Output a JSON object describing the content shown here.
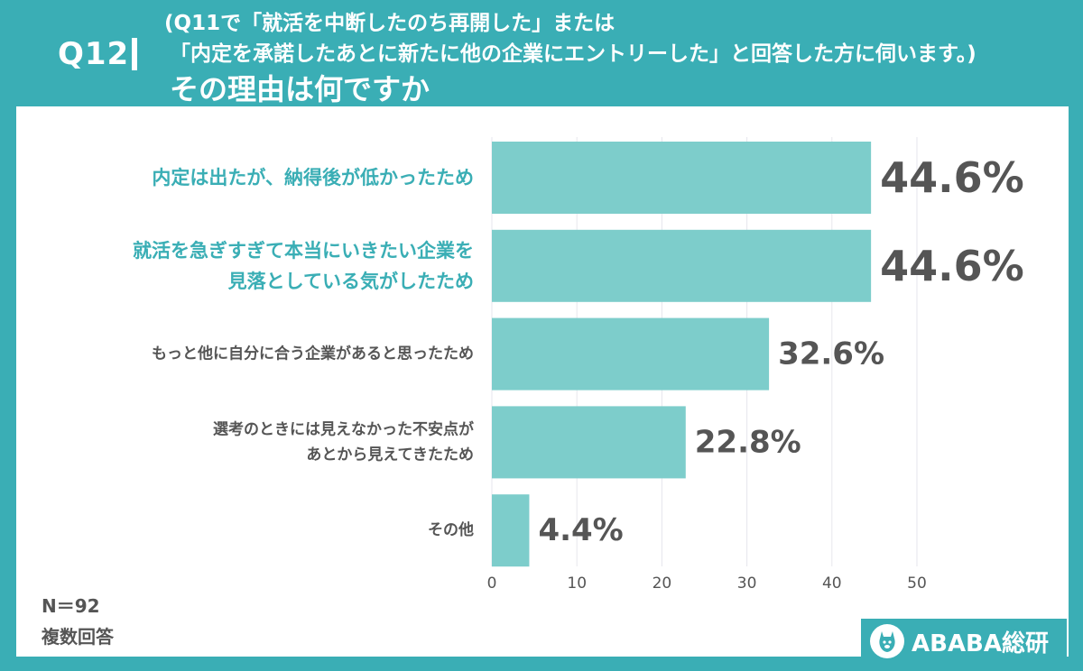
{
  "header": {
    "q_label": "Q12",
    "line1": "(Q11で「就活を中断したのち再開した」または",
    "line2": "「内定を承諾したあとに新たに他の企業にエントリーした」と回答した方に伺います。)",
    "title": "その理由は何ですか"
  },
  "footer": {
    "n_label": "N＝92",
    "multi_label": "複数回答",
    "brand": "ABABA総研"
  },
  "icons": {
    "logo": "alpaca-logo-icon"
  },
  "colors": {
    "background": "#3aaeb5",
    "bar": "#7dcdcb",
    "highlight_label": "#3aaeb5",
    "label": "#555555",
    "value": "#555555",
    "grid": "#e6e6ec"
  },
  "chart_data": {
    "type": "bar",
    "orientation": "horizontal",
    "categories": [
      [
        "内定は出たが、納得後が低かったため"
      ],
      [
        "就活を急ぎすぎて本当にいきたい企業を",
        "見落としている気がしたため"
      ],
      [
        "もっと他に自分に合う企業があると思ったため"
      ],
      [
        "選考のときには見えなかった不安点が",
        "あとから見えてきたため"
      ],
      [
        "その他"
      ]
    ],
    "values": [
      44.6,
      44.6,
      32.6,
      22.8,
      4.4
    ],
    "value_labels": [
      "44.6%",
      "44.6%",
      "32.6%",
      "22.8%",
      "4.4%"
    ],
    "highlighted": [
      true,
      true,
      false,
      false,
      false
    ],
    "xlim": [
      0,
      50
    ],
    "xticks": [
      0,
      10,
      20,
      30,
      40,
      50
    ],
    "grid": true
  }
}
